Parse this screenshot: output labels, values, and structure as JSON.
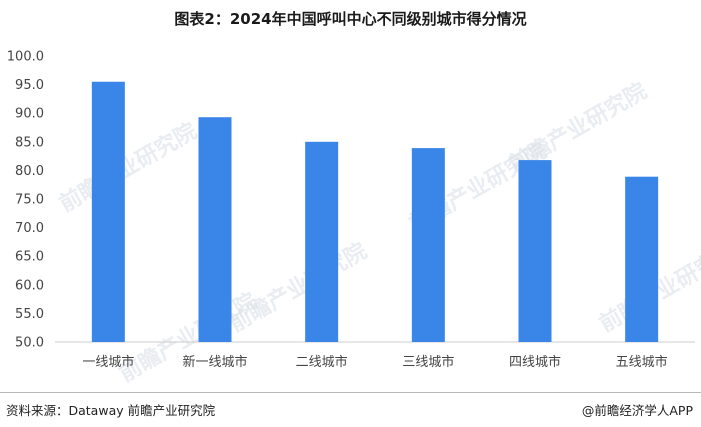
{
  "title": "图表2：2024年中国呼叫中心不同级别城市得分情况",
  "footer": {
    "source": "资料来源：Dataway 前瞻产业研究院",
    "brand": "@前瞻经济学人APP"
  },
  "watermark": "前瞻产业研究院",
  "colors": {
    "bar": "#3a86e8",
    "axis": "#cccccc",
    "text": "#444444"
  },
  "chart_data": {
    "type": "bar",
    "categories": [
      "一线城市",
      "新一线城市",
      "二线城市",
      "三线城市",
      "四线城市",
      "五线城市"
    ],
    "values": [
      95.5,
      89.3,
      85.0,
      83.9,
      81.8,
      78.9
    ],
    "ylim": [
      50,
      100
    ],
    "yticks": [
      "50.0",
      "55.0",
      "60.0",
      "65.0",
      "70.0",
      "75.0",
      "80.0",
      "85.0",
      "90.0",
      "95.0",
      "100.0"
    ],
    "xlabel": "",
    "ylabel": "",
    "grid": false
  }
}
